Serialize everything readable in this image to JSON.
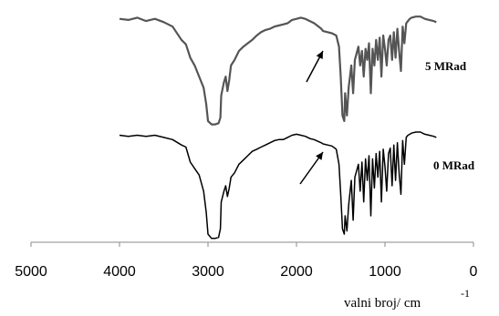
{
  "chart_data": {
    "type": "line",
    "x_axis": {
      "label": "valni broj/ cm",
      "label_superscript": "-1",
      "ticks": [
        5000,
        4000,
        3000,
        2000,
        1000,
        0
      ],
      "range": [
        5000,
        0
      ],
      "reversed": true
    },
    "y_axis": {
      "visible": false
    },
    "grid": false,
    "series": [
      {
        "name": "5 MRad",
        "color": "#555555",
        "points": [
          [
            4000,
            0.97
          ],
          [
            3900,
            0.96
          ],
          [
            3800,
            0.98
          ],
          [
            3700,
            0.95
          ],
          [
            3600,
            0.97
          ],
          [
            3500,
            0.94
          ],
          [
            3400,
            0.9
          ],
          [
            3300,
            0.78
          ],
          [
            3250,
            0.74
          ],
          [
            3200,
            0.62
          ],
          [
            3150,
            0.55
          ],
          [
            3100,
            0.45
          ],
          [
            3050,
            0.35
          ],
          [
            3020,
            0.2
          ],
          [
            3000,
            0.05
          ],
          [
            2960,
            0.02
          ],
          [
            2920,
            0.02
          ],
          [
            2880,
            0.03
          ],
          [
            2860,
            0.08
          ],
          [
            2850,
            0.28
          ],
          [
            2820,
            0.4
          ],
          [
            2800,
            0.45
          ],
          [
            2780,
            0.32
          ],
          [
            2760,
            0.42
          ],
          [
            2740,
            0.55
          ],
          [
            2700,
            0.6
          ],
          [
            2650,
            0.68
          ],
          [
            2600,
            0.72
          ],
          [
            2550,
            0.75
          ],
          [
            2500,
            0.78
          ],
          [
            2450,
            0.82
          ],
          [
            2400,
            0.85
          ],
          [
            2350,
            0.87
          ],
          [
            2300,
            0.88
          ],
          [
            2250,
            0.9
          ],
          [
            2200,
            0.91
          ],
          [
            2150,
            0.92
          ],
          [
            2100,
            0.93
          ],
          [
            2050,
            0.96
          ],
          [
            2000,
            0.97
          ],
          [
            1950,
            0.98
          ],
          [
            1900,
            0.97
          ],
          [
            1850,
            0.95
          ],
          [
            1800,
            0.93
          ],
          [
            1750,
            0.9
          ],
          [
            1720,
            0.88
          ],
          [
            1700,
            0.86
          ],
          [
            1650,
            0.85
          ],
          [
            1600,
            0.84
          ],
          [
            1550,
            0.82
          ],
          [
            1520,
            0.72
          ],
          [
            1500,
            0.45
          ],
          [
            1480,
            0.1
          ],
          [
            1460,
            0.05
          ],
          [
            1450,
            0.3
          ],
          [
            1430,
            0.1
          ],
          [
            1410,
            0.35
          ],
          [
            1380,
            0.55
          ],
          [
            1360,
            0.3
          ],
          [
            1340,
            0.6
          ],
          [
            1300,
            0.72
          ],
          [
            1280,
            0.55
          ],
          [
            1260,
            0.68
          ],
          [
            1240,
            0.45
          ],
          [
            1220,
            0.7
          ],
          [
            1200,
            0.6
          ],
          [
            1180,
            0.75
          ],
          [
            1160,
            0.3
          ],
          [
            1140,
            0.7
          ],
          [
            1120,
            0.55
          ],
          [
            1100,
            0.78
          ],
          [
            1080,
            0.6
          ],
          [
            1060,
            0.8
          ],
          [
            1040,
            0.45
          ],
          [
            1020,
            0.82
          ],
          [
            1000,
            0.7
          ],
          [
            980,
            0.55
          ],
          [
            960,
            0.78
          ],
          [
            940,
            0.82
          ],
          [
            920,
            0.6
          ],
          [
            900,
            0.85
          ],
          [
            880,
            0.62
          ],
          [
            860,
            0.88
          ],
          [
            840,
            0.68
          ],
          [
            820,
            0.5
          ],
          [
            800,
            0.9
          ],
          [
            780,
            0.75
          ],
          [
            760,
            0.93
          ],
          [
            740,
            0.95
          ],
          [
            720,
            0.97
          ],
          [
            700,
            0.98
          ],
          [
            650,
            0.99
          ],
          [
            600,
            0.99
          ],
          [
            550,
            0.97
          ],
          [
            500,
            0.96
          ],
          [
            450,
            0.95
          ],
          [
            420,
            0.94
          ]
        ]
      },
      {
        "name": "0 MRad",
        "color": "#000000",
        "points": [
          [
            4000,
            0.97
          ],
          [
            3900,
            0.96
          ],
          [
            3800,
            0.97
          ],
          [
            3700,
            0.96
          ],
          [
            3600,
            0.97
          ],
          [
            3500,
            0.95
          ],
          [
            3400,
            0.93
          ],
          [
            3300,
            0.88
          ],
          [
            3250,
            0.86
          ],
          [
            3200,
            0.72
          ],
          [
            3150,
            0.66
          ],
          [
            3100,
            0.6
          ],
          [
            3050,
            0.45
          ],
          [
            3020,
            0.25
          ],
          [
            3000,
            0.05
          ],
          [
            2960,
            0.01
          ],
          [
            2920,
            0.01
          ],
          [
            2880,
            0.02
          ],
          [
            2860,
            0.1
          ],
          [
            2850,
            0.35
          ],
          [
            2820,
            0.45
          ],
          [
            2800,
            0.5
          ],
          [
            2780,
            0.4
          ],
          [
            2760,
            0.48
          ],
          [
            2740,
            0.58
          ],
          [
            2700,
            0.62
          ],
          [
            2650,
            0.7
          ],
          [
            2600,
            0.74
          ],
          [
            2550,
            0.78
          ],
          [
            2500,
            0.82
          ],
          [
            2450,
            0.84
          ],
          [
            2400,
            0.86
          ],
          [
            2350,
            0.88
          ],
          [
            2300,
            0.9
          ],
          [
            2250,
            0.92
          ],
          [
            2200,
            0.93
          ],
          [
            2150,
            0.93
          ],
          [
            2100,
            0.95
          ],
          [
            2050,
            0.97
          ],
          [
            2000,
            0.98
          ],
          [
            1950,
            0.97
          ],
          [
            1900,
            0.96
          ],
          [
            1850,
            0.94
          ],
          [
            1800,
            0.93
          ],
          [
            1750,
            0.91
          ],
          [
            1720,
            0.9
          ],
          [
            1700,
            0.89
          ],
          [
            1650,
            0.88
          ],
          [
            1600,
            0.87
          ],
          [
            1550,
            0.84
          ],
          [
            1520,
            0.7
          ],
          [
            1500,
            0.42
          ],
          [
            1480,
            0.1
          ],
          [
            1460,
            0.05
          ],
          [
            1450,
            0.22
          ],
          [
            1430,
            0.08
          ],
          [
            1410,
            0.32
          ],
          [
            1380,
            0.55
          ],
          [
            1360,
            0.18
          ],
          [
            1340,
            0.58
          ],
          [
            1300,
            0.7
          ],
          [
            1280,
            0.45
          ],
          [
            1260,
            0.72
          ],
          [
            1240,
            0.35
          ],
          [
            1220,
            0.75
          ],
          [
            1200,
            0.55
          ],
          [
            1180,
            0.78
          ],
          [
            1160,
            0.22
          ],
          [
            1140,
            0.75
          ],
          [
            1120,
            0.48
          ],
          [
            1100,
            0.8
          ],
          [
            1080,
            0.58
          ],
          [
            1060,
            0.82
          ],
          [
            1040,
            0.35
          ],
          [
            1020,
            0.84
          ],
          [
            1000,
            0.68
          ],
          [
            980,
            0.45
          ],
          [
            960,
            0.8
          ],
          [
            940,
            0.85
          ],
          [
            920,
            0.5
          ],
          [
            900,
            0.88
          ],
          [
            880,
            0.55
          ],
          [
            860,
            0.9
          ],
          [
            840,
            0.62
          ],
          [
            820,
            0.42
          ],
          [
            800,
            0.92
          ],
          [
            780,
            0.7
          ],
          [
            760,
            0.95
          ],
          [
            740,
            0.97
          ],
          [
            720,
            0.98
          ],
          [
            700,
            0.99
          ],
          [
            650,
            1.0
          ],
          [
            600,
            1.0
          ],
          [
            550,
            0.98
          ],
          [
            500,
            0.97
          ],
          [
            450,
            0.96
          ],
          [
            420,
            0.95
          ]
        ]
      }
    ],
    "annotations": [
      {
        "type": "arrow",
        "target_x": 1650,
        "series": "5 MRad"
      },
      {
        "type": "arrow",
        "target_x": 1650,
        "series": "0 MRad"
      }
    ]
  }
}
